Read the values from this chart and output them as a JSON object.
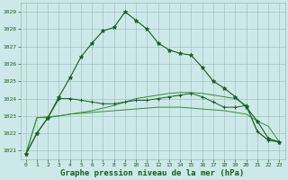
{
  "background_color": "#cce8e8",
  "grid_color": "#99bbbb",
  "line_color_dark": "#1a5c1a",
  "line_color_light": "#3a8c3a",
  "xlabel": "Graphe pression niveau de la mer (hPa)",
  "xlabel_fontsize": 6.5,
  "ylim": [
    1020.5,
    1029.5
  ],
  "xlim": [
    -0.5,
    23.5
  ],
  "yticks": [
    1021,
    1022,
    1023,
    1024,
    1025,
    1026,
    1027,
    1028,
    1029
  ],
  "xticks": [
    0,
    1,
    2,
    3,
    4,
    5,
    6,
    7,
    8,
    9,
    10,
    11,
    12,
    13,
    14,
    15,
    16,
    17,
    18,
    19,
    20,
    21,
    22,
    23
  ],
  "series1": [
    1020.8,
    1022.0,
    1022.9,
    1024.1,
    1025.2,
    1026.4,
    1027.2,
    1027.9,
    1028.1,
    1029.0,
    1028.5,
    1028.0,
    1027.2,
    1026.8,
    1026.6,
    1026.5,
    1025.8,
    1025.0,
    1024.6,
    1024.1,
    1023.5,
    1022.7,
    1021.7,
    1021.5
  ],
  "series2": [
    1020.8,
    1022.0,
    1022.9,
    1024.0,
    1024.0,
    1023.9,
    1023.8,
    1023.7,
    1023.7,
    1023.8,
    1023.9,
    1023.9,
    1024.0,
    1024.1,
    1024.2,
    1024.3,
    1024.1,
    1023.8,
    1023.5,
    1023.5,
    1023.6,
    1022.1,
    1021.6,
    1021.5
  ],
  "series3": [
    1020.8,
    1022.9,
    1022.9,
    1023.0,
    1023.1,
    1023.15,
    1023.2,
    1023.25,
    1023.3,
    1023.35,
    1023.4,
    1023.45,
    1023.5,
    1023.5,
    1023.5,
    1023.45,
    1023.4,
    1023.35,
    1023.3,
    1023.2,
    1023.1,
    1022.7,
    1022.4,
    1021.5
  ],
  "series4": [
    1020.8,
    1022.9,
    1022.95,
    1023.0,
    1023.1,
    1023.2,
    1023.3,
    1023.45,
    1023.6,
    1023.8,
    1024.0,
    1024.1,
    1024.2,
    1024.3,
    1024.35,
    1024.35,
    1024.3,
    1024.2,
    1024.1,
    1024.0,
    1023.6,
    1022.1,
    1021.6,
    1021.5
  ]
}
